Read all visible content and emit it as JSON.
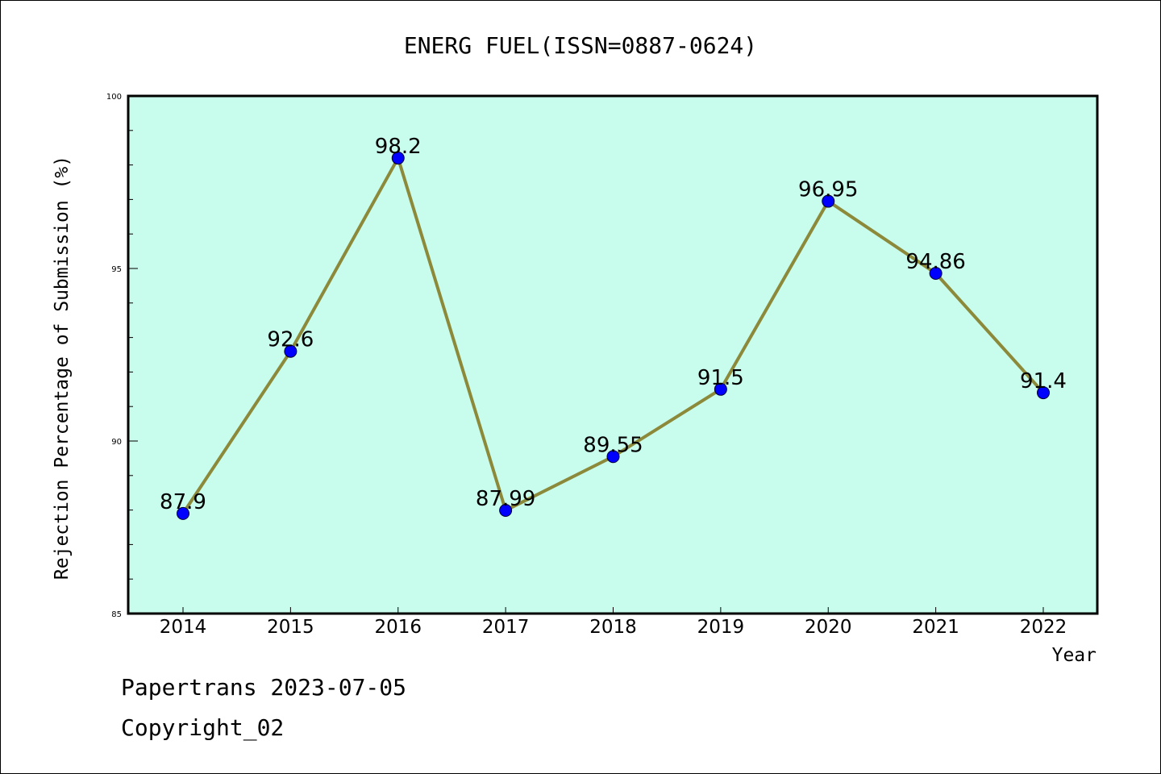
{
  "chart_data": {
    "type": "line",
    "title": "ENERG FUEL(ISSN=0887-0624)",
    "xlabel": "Year",
    "ylabel": "Rejection Percentage of Submission (%)",
    "categories": [
      "2014",
      "2015",
      "2016",
      "2017",
      "2018",
      "2019",
      "2020",
      "2021",
      "2022"
    ],
    "values": [
      87.9,
      92.6,
      98.2,
      87.99,
      89.55,
      91.5,
      96.95,
      94.86,
      91.4
    ],
    "data_labels": [
      "87.9",
      "92.6",
      "98.2",
      "87.99",
      "89.55",
      "91.5",
      "96.95",
      "94.86",
      "91.4"
    ],
    "ylim": [
      85,
      100
    ],
    "yticks": [
      85,
      90,
      95,
      100
    ],
    "ytick_labels": [
      "85",
      "90",
      "95",
      "100"
    ],
    "grid": false,
    "legend": "none",
    "colors": {
      "plot_background": "#c8fcec",
      "line": "#8c8a3a",
      "marker": "#0000ff",
      "axes": "#000000"
    }
  },
  "footer": {
    "line1": "Papertrans 2023-07-05",
    "line2": "Copyright_02"
  }
}
